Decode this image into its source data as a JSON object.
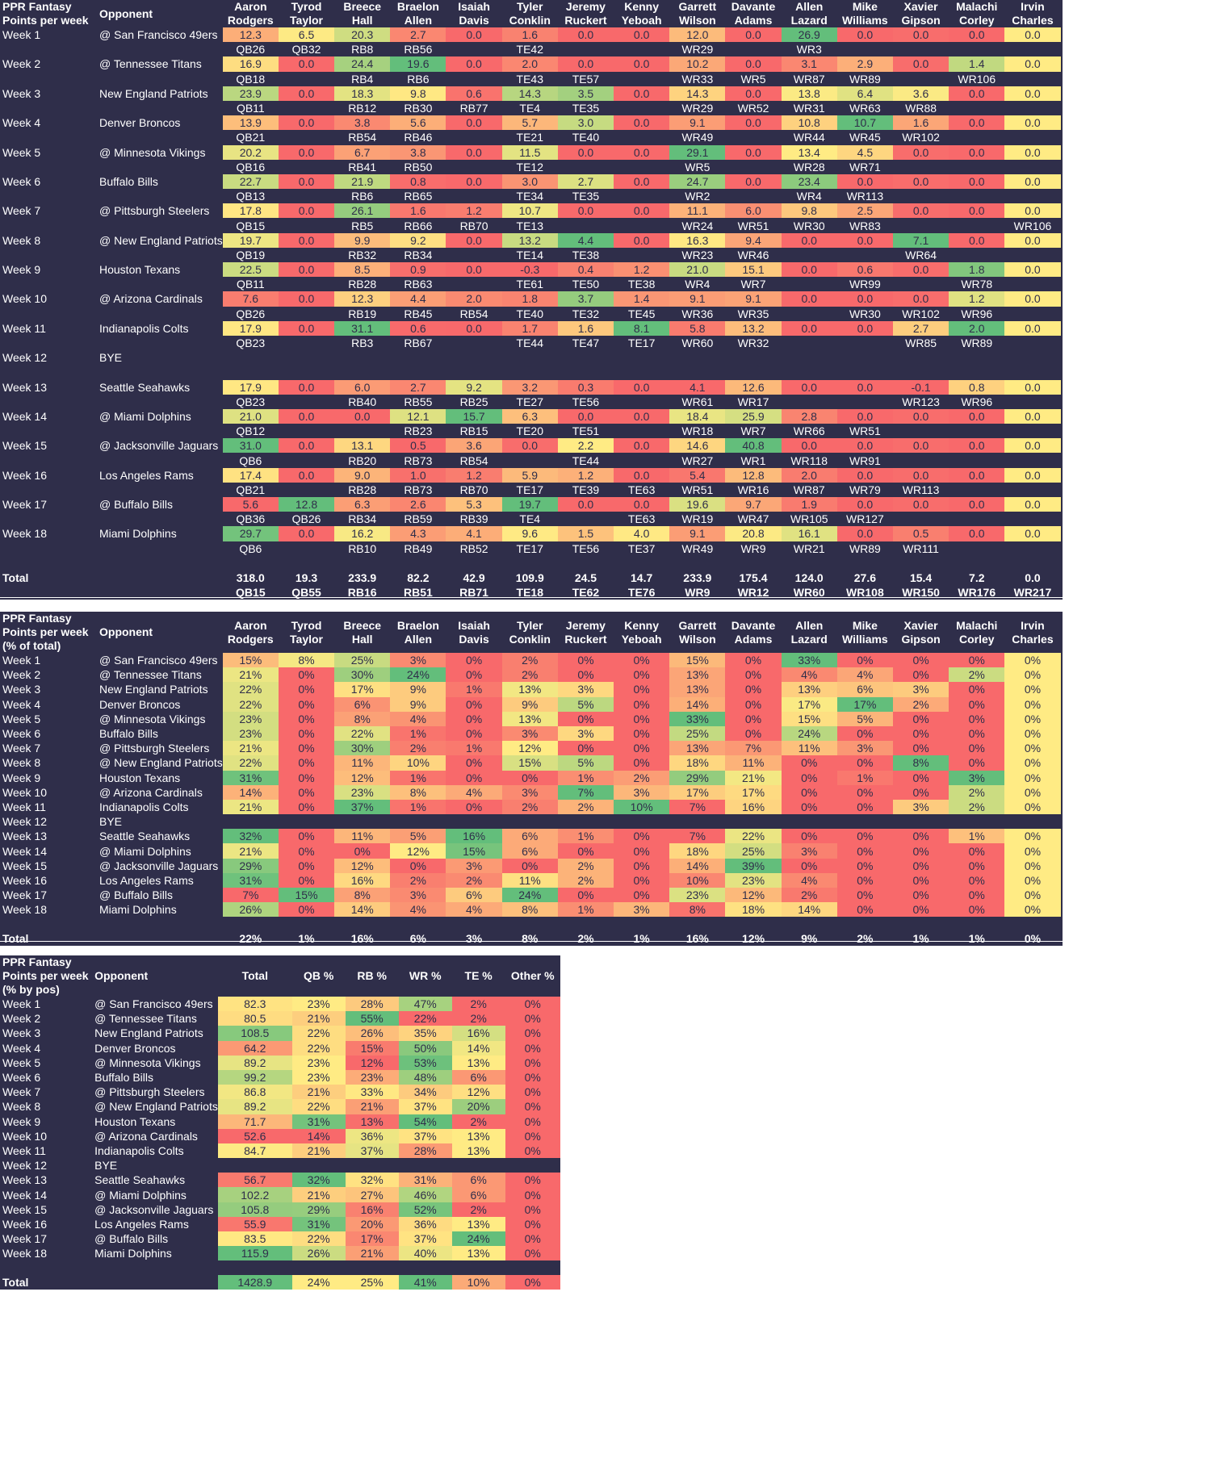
{
  "players": [
    "Aaron Rodgers",
    "Tyrod Taylor",
    "Breece Hall",
    "Braelon Allen",
    "Isaiah Davis",
    "Tyler Conklin",
    "Jeremy Ruckert",
    "Kenny Yeboah",
    "Garrett Wilson",
    "Davante Adams",
    "Allen Lazard",
    "Mike Williams",
    "Xavier Gipson",
    "Malachi Corley",
    "Irvin Charles"
  ],
  "weeks": [
    {
      "week": "Week 1",
      "opponent": "@ San Francisco 49ers"
    },
    {
      "week": "Week 2",
      "opponent": "@ Tennessee Titans"
    },
    {
      "week": "Week 3",
      "opponent": "New England Patriots"
    },
    {
      "week": "Week 4",
      "opponent": "Denver Broncos"
    },
    {
      "week": "Week 5",
      "opponent": "@ Minnesota Vikings"
    },
    {
      "week": "Week 6",
      "opponent": "Buffalo Bills"
    },
    {
      "week": "Week 7",
      "opponent": "@ Pittsburgh Steelers"
    },
    {
      "week": "Week 8",
      "opponent": "@ New England Patriots"
    },
    {
      "week": "Week 9",
      "opponent": "Houston Texans"
    },
    {
      "week": "Week 10",
      "opponent": "@ Arizona Cardinals"
    },
    {
      "week": "Week 11",
      "opponent": "Indianapolis Colts"
    },
    {
      "week": "Week 12",
      "opponent": "BYE"
    },
    {
      "week": "Week 13",
      "opponent": "Seattle Seahawks"
    },
    {
      "week": "Week 14",
      "opponent": "@ Miami Dolphins"
    },
    {
      "week": "Week 15",
      "opponent": "@ Jacksonville Jaguars"
    },
    {
      "week": "Week 16",
      "opponent": "Los Angeles Rams"
    },
    {
      "week": "Week 17",
      "opponent": "@ Buffalo Bills"
    },
    {
      "week": "Week 18",
      "opponent": "Miami Dolphins"
    }
  ],
  "table1": {
    "title": "PPR Fantasy Points per week",
    "opponent_header": "Opponent",
    "points": [
      [
        "12.3",
        "6.5",
        "20.3",
        "2.7",
        "0.0",
        "1.6",
        "0.0",
        "0.0",
        "12.0",
        "0.0",
        "26.9",
        "0.0",
        "0.0",
        "0.0",
        "0.0"
      ],
      [
        "16.9",
        "0.0",
        "24.4",
        "19.6",
        "0.0",
        "2.0",
        "0.0",
        "0.0",
        "10.2",
        "0.0",
        "3.1",
        "2.9",
        "0.0",
        "1.4",
        "0.0"
      ],
      [
        "23.9",
        "0.0",
        "18.3",
        "9.8",
        "0.6",
        "14.3",
        "3.5",
        "0.0",
        "14.3",
        "0.0",
        "13.8",
        "6.4",
        "3.6",
        "0.0",
        "0.0"
      ],
      [
        "13.9",
        "0.0",
        "3.8",
        "5.6",
        "0.0",
        "5.7",
        "3.0",
        "0.0",
        "9.1",
        "0.0",
        "10.8",
        "10.7",
        "1.6",
        "0.0",
        "0.0"
      ],
      [
        "20.2",
        "0.0",
        "6.7",
        "3.8",
        "0.0",
        "11.5",
        "0.0",
        "0.0",
        "29.1",
        "0.0",
        "13.4",
        "4.5",
        "0.0",
        "0.0",
        "0.0"
      ],
      [
        "22.7",
        "0.0",
        "21.9",
        "0.8",
        "0.0",
        "3.0",
        "2.7",
        "0.0",
        "24.7",
        "0.0",
        "23.4",
        "0.0",
        "0.0",
        "0.0",
        "0.0"
      ],
      [
        "17.8",
        "0.0",
        "26.1",
        "1.6",
        "1.2",
        "10.7",
        "0.0",
        "0.0",
        "11.1",
        "6.0",
        "9.8",
        "2.5",
        "0.0",
        "0.0",
        "0.0"
      ],
      [
        "19.7",
        "0.0",
        "9.9",
        "9.2",
        "0.0",
        "13.2",
        "4.4",
        "0.0",
        "16.3",
        "9.4",
        "0.0",
        "0.0",
        "7.1",
        "0.0",
        "0.0"
      ],
      [
        "22.5",
        "0.0",
        "8.5",
        "0.9",
        "0.0",
        "-0.3",
        "0.4",
        "1.2",
        "21.0",
        "15.1",
        "0.0",
        "0.6",
        "0.0",
        "1.8",
        "0.0"
      ],
      [
        "7.6",
        "0.0",
        "12.3",
        "4.4",
        "2.0",
        "1.8",
        "3.7",
        "1.4",
        "9.1",
        "9.1",
        "0.0",
        "0.0",
        "0.0",
        "1.2",
        "0.0"
      ],
      [
        "17.9",
        "0.0",
        "31.1",
        "0.6",
        "0.0",
        "1.7",
        "1.6",
        "8.1",
        "5.8",
        "13.2",
        "0.0",
        "0.0",
        "2.7",
        "2.0",
        "0.0"
      ],
      null,
      [
        "17.9",
        "0.0",
        "6.0",
        "2.7",
        "9.2",
        "3.2",
        "0.3",
        "0.0",
        "4.1",
        "12.6",
        "0.0",
        "0.0",
        "-0.1",
        "0.8",
        "0.0"
      ],
      [
        "21.0",
        "0.0",
        "0.0",
        "12.1",
        "15.7",
        "6.3",
        "0.0",
        "0.0",
        "18.4",
        "25.9",
        "2.8",
        "0.0",
        "0.0",
        "0.0",
        "0.0"
      ],
      [
        "31.0",
        "0.0",
        "13.1",
        "0.5",
        "3.6",
        "0.0",
        "2.2",
        "0.0",
        "14.6",
        "40.8",
        "0.0",
        "0.0",
        "0.0",
        "0.0",
        "0.0"
      ],
      [
        "17.4",
        "0.0",
        "9.0",
        "1.0",
        "1.2",
        "5.9",
        "1.2",
        "0.0",
        "5.4",
        "12.8",
        "2.0",
        "0.0",
        "0.0",
        "0.0",
        "0.0"
      ],
      [
        "5.6",
        "12.8",
        "6.3",
        "2.6",
        "5.3",
        "19.7",
        "0.0",
        "0.0",
        "19.6",
        "9.7",
        "1.9",
        "0.0",
        "0.0",
        "0.0",
        "0.0"
      ],
      [
        "29.7",
        "0.0",
        "16.2",
        "4.3",
        "4.1",
        "9.6",
        "1.5",
        "4.0",
        "9.1",
        "20.8",
        "16.1",
        "0.0",
        "0.5",
        "0.0",
        "0.0"
      ]
    ],
    "ranks": [
      [
        "QB26",
        "QB32",
        "RB8",
        "RB56",
        "",
        "TE42",
        "",
        "",
        "WR29",
        "",
        "WR3",
        "",
        "",
        "",
        ""
      ],
      [
        "QB18",
        "",
        "RB4",
        "RB6",
        "",
        "TE43",
        "TE57",
        "",
        "WR33",
        "WR5",
        "WR87",
        "WR89",
        "",
        "WR106",
        ""
      ],
      [
        "QB11",
        "",
        "RB12",
        "RB30",
        "RB77",
        "TE4",
        "TE35",
        "",
        "WR29",
        "WR52",
        "WR31",
        "WR63",
        "WR88",
        "",
        ""
      ],
      [
        "QB21",
        "",
        "RB54",
        "RB46",
        "",
        "TE21",
        "TE40",
        "",
        "WR49",
        "",
        "WR44",
        "WR45",
        "WR102",
        "",
        ""
      ],
      [
        "QB16",
        "",
        "RB41",
        "RB50",
        "",
        "TE12",
        "",
        "",
        "WR5",
        "",
        "WR28",
        "WR71",
        "",
        "",
        ""
      ],
      [
        "QB13",
        "",
        "RB6",
        "RB65",
        "",
        "TE34",
        "TE35",
        "",
        "WR2",
        "",
        "WR4",
        "WR113",
        "",
        "",
        ""
      ],
      [
        "QB15",
        "",
        "RB5",
        "RB66",
        "RB70",
        "TE13",
        "",
        "",
        "WR24",
        "WR51",
        "WR30",
        "WR83",
        "",
        "",
        "WR106"
      ],
      [
        "QB19",
        "",
        "RB32",
        "RB34",
        "",
        "TE14",
        "TE38",
        "",
        "WR23",
        "WR46",
        "",
        "",
        "WR64",
        "",
        ""
      ],
      [
        "QB11",
        "",
        "RB28",
        "RB63",
        "",
        "TE61",
        "TE50",
        "TE38",
        "WR4",
        "WR7",
        "",
        "WR99",
        "",
        "WR78",
        ""
      ],
      [
        "QB26",
        "",
        "RB19",
        "RB45",
        "RB54",
        "TE40",
        "TE32",
        "TE45",
        "WR36",
        "WR35",
        "",
        "WR30",
        "WR102",
        "WR96",
        ""
      ],
      [
        "QB23",
        "",
        "RB3",
        "RB67",
        "",
        "TE44",
        "TE47",
        "TE17",
        "WR60",
        "WR32",
        "",
        "",
        "WR85",
        "WR89",
        ""
      ],
      null,
      [
        "QB23",
        "",
        "RB40",
        "RB55",
        "RB25",
        "TE27",
        "TE56",
        "",
        "WR61",
        "WR17",
        "",
        "",
        "WR123",
        "WR96",
        ""
      ],
      [
        "QB12",
        "",
        "",
        "RB23",
        "RB15",
        "TE20",
        "TE51",
        "",
        "WR18",
        "WR7",
        "WR66",
        "WR51",
        "",
        "",
        ""
      ],
      [
        "QB6",
        "",
        "RB20",
        "RB73",
        "RB54",
        "",
        "TE44",
        "",
        "WR27",
        "WR1",
        "WR118",
        "WR91",
        "",
        "",
        ""
      ],
      [
        "QB21",
        "",
        "RB28",
        "RB73",
        "RB70",
        "TE17",
        "TE39",
        "TE63",
        "WR51",
        "WR16",
        "WR87",
        "WR79",
        "WR113",
        "",
        ""
      ],
      [
        "QB36",
        "QB26",
        "RB34",
        "RB59",
        "RB39",
        "TE4",
        "",
        "TE63",
        "WR19",
        "WR47",
        "WR105",
        "WR127",
        "",
        "",
        ""
      ],
      [
        "QB6",
        "",
        "RB10",
        "RB49",
        "RB52",
        "TE17",
        "TE56",
        "TE37",
        "WR49",
        "WR9",
        "WR21",
        "WR89",
        "WR111",
        "",
        ""
      ]
    ],
    "total_label": "Total",
    "totals": [
      "318.0",
      "19.3",
      "233.9",
      "82.2",
      "42.9",
      "109.9",
      "24.5",
      "14.7",
      "233.9",
      "175.4",
      "124.0",
      "27.6",
      "15.4",
      "7.2",
      "0.0"
    ],
    "total_ranks": [
      "QB15",
      "QB55",
      "RB16",
      "RB51",
      "RB71",
      "TE18",
      "TE62",
      "TE76",
      "WR9",
      "WR12",
      "WR60",
      "WR108",
      "WR150",
      "WR176",
      "WR217"
    ]
  },
  "table2": {
    "title": "PPR Fantasy Points per week (% of total)",
    "opponent_header": "Opponent",
    "pct": [
      [
        "15%",
        "8%",
        "25%",
        "3%",
        "0%",
        "2%",
        "0%",
        "0%",
        "15%",
        "0%",
        "33%",
        "0%",
        "0%",
        "0%",
        "0%"
      ],
      [
        "21%",
        "0%",
        "30%",
        "24%",
        "0%",
        "2%",
        "0%",
        "0%",
        "13%",
        "0%",
        "4%",
        "4%",
        "0%",
        "2%",
        "0%"
      ],
      [
        "22%",
        "0%",
        "17%",
        "9%",
        "1%",
        "13%",
        "3%",
        "0%",
        "13%",
        "0%",
        "13%",
        "6%",
        "3%",
        "0%",
        "0%"
      ],
      [
        "22%",
        "0%",
        "6%",
        "9%",
        "0%",
        "9%",
        "5%",
        "0%",
        "14%",
        "0%",
        "17%",
        "17%",
        "2%",
        "0%",
        "0%"
      ],
      [
        "23%",
        "0%",
        "8%",
        "4%",
        "0%",
        "13%",
        "0%",
        "0%",
        "33%",
        "0%",
        "15%",
        "5%",
        "0%",
        "0%",
        "0%"
      ],
      [
        "23%",
        "0%",
        "22%",
        "1%",
        "0%",
        "3%",
        "3%",
        "0%",
        "25%",
        "0%",
        "24%",
        "0%",
        "0%",
        "0%",
        "0%"
      ],
      [
        "21%",
        "0%",
        "30%",
        "2%",
        "1%",
        "12%",
        "0%",
        "0%",
        "13%",
        "7%",
        "11%",
        "3%",
        "0%",
        "0%",
        "0%"
      ],
      [
        "22%",
        "0%",
        "11%",
        "10%",
        "0%",
        "15%",
        "5%",
        "0%",
        "18%",
        "11%",
        "0%",
        "0%",
        "8%",
        "0%",
        "0%"
      ],
      [
        "31%",
        "0%",
        "12%",
        "1%",
        "0%",
        "0%",
        "1%",
        "2%",
        "29%",
        "21%",
        "0%",
        "1%",
        "0%",
        "3%",
        "0%"
      ],
      [
        "14%",
        "0%",
        "23%",
        "8%",
        "4%",
        "3%",
        "7%",
        "3%",
        "17%",
        "17%",
        "0%",
        "0%",
        "0%",
        "2%",
        "0%"
      ],
      [
        "21%",
        "0%",
        "37%",
        "1%",
        "0%",
        "2%",
        "2%",
        "10%",
        "7%",
        "16%",
        "0%",
        "0%",
        "3%",
        "2%",
        "0%"
      ],
      null,
      [
        "32%",
        "0%",
        "11%",
        "5%",
        "16%",
        "6%",
        "1%",
        "0%",
        "7%",
        "22%",
        "0%",
        "0%",
        "0%",
        "1%",
        "0%"
      ],
      [
        "21%",
        "0%",
        "0%",
        "12%",
        "15%",
        "6%",
        "0%",
        "0%",
        "18%",
        "25%",
        "3%",
        "0%",
        "0%",
        "0%",
        "0%"
      ],
      [
        "29%",
        "0%",
        "12%",
        "0%",
        "3%",
        "0%",
        "2%",
        "0%",
        "14%",
        "39%",
        "0%",
        "0%",
        "0%",
        "0%",
        "0%"
      ],
      [
        "31%",
        "0%",
        "16%",
        "2%",
        "2%",
        "11%",
        "2%",
        "0%",
        "10%",
        "23%",
        "4%",
        "0%",
        "0%",
        "0%",
        "0%"
      ],
      [
        "7%",
        "15%",
        "8%",
        "3%",
        "6%",
        "24%",
        "0%",
        "0%",
        "23%",
        "12%",
        "2%",
        "0%",
        "0%",
        "0%",
        "0%"
      ],
      [
        "26%",
        "0%",
        "14%",
        "4%",
        "4%",
        "8%",
        "1%",
        "3%",
        "8%",
        "18%",
        "14%",
        "0%",
        "0%",
        "0%",
        "0%"
      ]
    ],
    "total_label": "Total",
    "totals": [
      "22%",
      "1%",
      "16%",
      "6%",
      "3%",
      "8%",
      "2%",
      "1%",
      "16%",
      "12%",
      "9%",
      "2%",
      "1%",
      "1%",
      "0%"
    ]
  },
  "table3": {
    "title": "PPR Fantasy Points per week (% by pos)",
    "headers": [
      "Opponent",
      "Total",
      "QB %",
      "RB %",
      "WR %",
      "TE %",
      "Other %"
    ],
    "rows": [
      [
        "82.3",
        "23%",
        "28%",
        "47%",
        "2%",
        "0%"
      ],
      [
        "80.5",
        "21%",
        "55%",
        "22%",
        "2%",
        "0%"
      ],
      [
        "108.5",
        "22%",
        "26%",
        "35%",
        "16%",
        "0%"
      ],
      [
        "64.2",
        "22%",
        "15%",
        "50%",
        "14%",
        "0%"
      ],
      [
        "89.2",
        "23%",
        "12%",
        "53%",
        "13%",
        "0%"
      ],
      [
        "99.2",
        "23%",
        "23%",
        "48%",
        "6%",
        "0%"
      ],
      [
        "86.8",
        "21%",
        "33%",
        "34%",
        "12%",
        "0%"
      ],
      [
        "89.2",
        "22%",
        "21%",
        "37%",
        "20%",
        "0%"
      ],
      [
        "71.7",
        "31%",
        "13%",
        "54%",
        "2%",
        "0%"
      ],
      [
        "52.6",
        "14%",
        "36%",
        "37%",
        "13%",
        "0%"
      ],
      [
        "84.7",
        "21%",
        "37%",
        "28%",
        "13%",
        "0%"
      ],
      null,
      [
        "56.7",
        "32%",
        "32%",
        "31%",
        "6%",
        "0%"
      ],
      [
        "102.2",
        "21%",
        "27%",
        "46%",
        "6%",
        "0%"
      ],
      [
        "105.8",
        "29%",
        "16%",
        "52%",
        "2%",
        "0%"
      ],
      [
        "55.9",
        "31%",
        "20%",
        "36%",
        "13%",
        "0%"
      ],
      [
        "83.5",
        "22%",
        "17%",
        "37%",
        "24%",
        "0%"
      ],
      [
        "115.9",
        "26%",
        "21%",
        "40%",
        "13%",
        "0%"
      ]
    ],
    "total_label": "Total",
    "totals": [
      "1428.9",
      "24%",
      "25%",
      "41%",
      "10%",
      "0%"
    ]
  },
  "colors": {
    "background": "#2f2e4a",
    "low": "#f8696b",
    "mid": "#ffeb84",
    "high": "#63be7b"
  }
}
